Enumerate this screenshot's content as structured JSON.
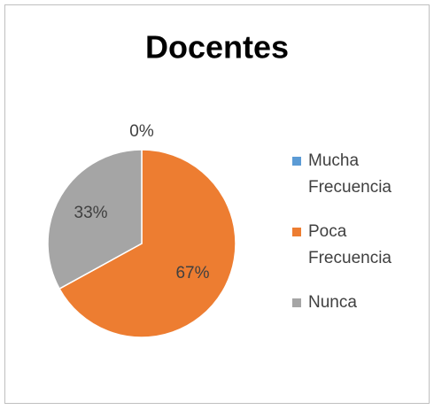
{
  "chart_data": {
    "type": "pie",
    "title": "Docentes",
    "categories": [
      "Mucha Frecuencia",
      "Poca Frecuencia",
      "Nunca"
    ],
    "values": [
      0,
      67,
      33
    ],
    "value_labels": [
      "0%",
      "67%",
      "33%"
    ],
    "colors": [
      "#5b9bd5",
      "#ed7d31",
      "#a5a5a5"
    ],
    "legend": "right"
  }
}
